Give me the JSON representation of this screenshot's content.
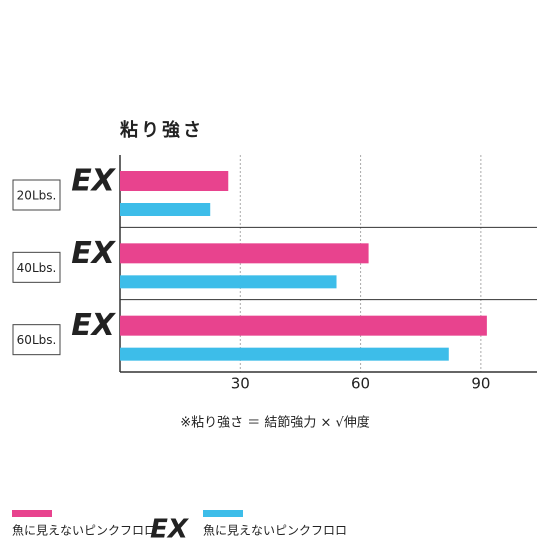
{
  "chart_data": {
    "type": "bar",
    "orientation": "horizontal",
    "title": "粘り強さ",
    "categories": [
      "20Lbs.",
      "40Lbs.",
      "60Lbs."
    ],
    "ex_logo": "EX",
    "series": [
      {
        "name": "魚に見えないピンクフロロ",
        "color": "#e8438e",
        "values": [
          27,
          62,
          91.5
        ]
      },
      {
        "name": "魚に見えないピンクフロロ",
        "color": "#3dbde9",
        "values": [
          22.5,
          54,
          82
        ]
      }
    ],
    "xlim": [
      0,
      104
    ],
    "xticks": [
      30,
      60,
      90
    ],
    "grid": true,
    "note": "※粘り強さ ＝ 結節強力 × √伸度"
  }
}
